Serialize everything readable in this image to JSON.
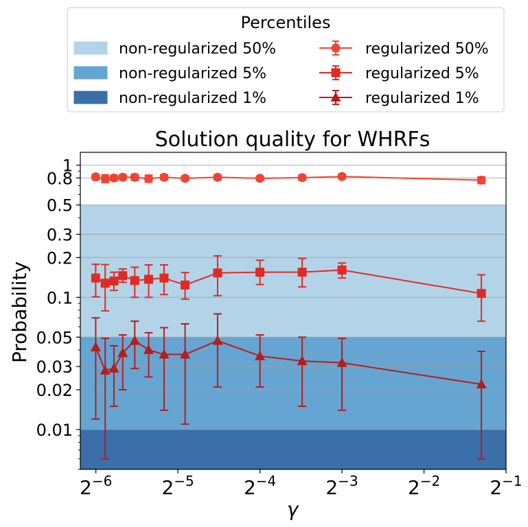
{
  "chart_data": {
    "type": "line",
    "title": "Solution quality for WHRFs",
    "xlabel": "γ",
    "ylabel": "Probability",
    "xscale": "log2",
    "yscale": "log",
    "xlim": [
      0.0137,
      0.5
    ],
    "ylim": [
      0.005,
      1.25
    ],
    "xticks": [
      {
        "value": 0.015625,
        "base": "2",
        "exp": "−6"
      },
      {
        "value": 0.03125,
        "base": "2",
        "exp": "−5"
      },
      {
        "value": 0.0625,
        "base": "2",
        "exp": "−4"
      },
      {
        "value": 0.125,
        "base": "2",
        "exp": "−3"
      },
      {
        "value": 0.25,
        "base": "2",
        "exp": "−2"
      },
      {
        "value": 0.5,
        "base": "2",
        "exp": "−1"
      }
    ],
    "yticks": [
      {
        "value": 1,
        "label": "1"
      },
      {
        "value": 0.8,
        "label": "0.8"
      },
      {
        "value": 0.5,
        "label": "0.5"
      },
      {
        "value": 0.3,
        "label": "0.3"
      },
      {
        "value": 0.2,
        "label": "0.2"
      },
      {
        "value": 0.1,
        "label": "0.1"
      },
      {
        "value": 0.05,
        "label": "0.05"
      },
      {
        "value": 0.03,
        "label": "0.03"
      },
      {
        "value": 0.02,
        "label": "0.02"
      },
      {
        "value": 0.01,
        "label": "0.01"
      }
    ],
    "legend": {
      "title": "Percentiles",
      "placement": "above-plot",
      "columns": 2
    },
    "bands": [
      {
        "name": "non-regularized 50%",
        "from": 0.05,
        "to": 0.5,
        "color": "#b3d4e8"
      },
      {
        "name": "non-regularized 5%",
        "from": 0.01,
        "to": 0.05,
        "color": "#66a5d1"
      },
      {
        "name": "non-regularized 1%",
        "from": 0.001,
        "to": 0.01,
        "color": "#3a6fa9"
      }
    ],
    "x": [
      0.0156,
      0.0169,
      0.0182,
      0.0196,
      0.0217,
      0.0244,
      0.0278,
      0.0332,
      0.0437,
      0.0625,
      0.0893,
      0.125,
      0.406
    ],
    "series": [
      {
        "name": "regularized 50%",
        "marker": "circle",
        "color": "#ef4434",
        "values": [
          0.815,
          0.79,
          0.8,
          0.81,
          0.81,
          0.79,
          0.81,
          0.795,
          0.81,
          0.795,
          0.805,
          0.82,
          0.77
        ],
        "err_low": [
          0.775,
          0.74,
          0.765,
          0.775,
          0.77,
          0.745,
          0.775,
          0.765,
          0.775,
          0.765,
          0.77,
          0.79,
          0.725
        ],
        "err_high": [
          0.85,
          0.845,
          0.835,
          0.845,
          0.85,
          0.84,
          0.845,
          0.825,
          0.845,
          0.825,
          0.84,
          0.855,
          0.815
        ]
      },
      {
        "name": "regularized 5%",
        "marker": "square",
        "color": "#e02a26",
        "values": [
          0.14,
          0.128,
          0.133,
          0.146,
          0.134,
          0.137,
          0.14,
          0.124,
          0.153,
          0.155,
          0.155,
          0.161,
          0.107
        ],
        "err_low": [
          0.101,
          0.079,
          0.113,
          0.13,
          0.1,
          0.1,
          0.105,
          0.097,
          0.103,
          0.125,
          0.12,
          0.14,
          0.066
        ],
        "err_high": [
          0.178,
          0.177,
          0.155,
          0.164,
          0.169,
          0.176,
          0.176,
          0.154,
          0.206,
          0.191,
          0.197,
          0.182,
          0.148
        ]
      },
      {
        "name": "regularized 1%",
        "marker": "triangle",
        "color": "#b71c1c",
        "values": [
          0.042,
          0.028,
          0.029,
          0.038,
          0.047,
          0.04,
          0.037,
          0.037,
          0.047,
          0.036,
          0.033,
          0.032,
          0.022
        ],
        "err_low": [
          0.012,
          0.006,
          0.015,
          0.02,
          0.029,
          0.025,
          0.014,
          0.011,
          0.021,
          0.021,
          0.015,
          0.014,
          0.006
        ],
        "err_high": [
          0.07,
          0.049,
          0.043,
          0.052,
          0.066,
          0.054,
          0.059,
          0.063,
          0.075,
          0.052,
          0.05,
          0.049,
          0.039
        ]
      }
    ]
  }
}
